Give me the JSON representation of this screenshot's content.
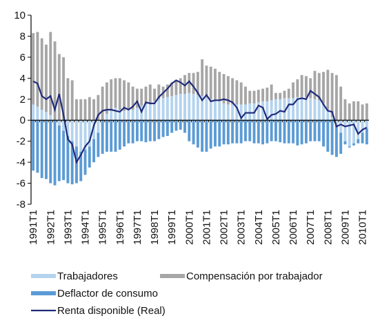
{
  "chart_data": {
    "type": "bar",
    "stacked": true,
    "legend": "bottom",
    "grid": false,
    "categories": [
      "1991T1",
      null,
      null,
      null,
      "1992T1",
      null,
      null,
      null,
      "1993T1",
      null,
      null,
      null,
      "1994T1",
      null,
      null,
      null,
      "1995T1",
      null,
      null,
      null,
      "1996T1",
      null,
      null,
      null,
      "1997T1",
      null,
      null,
      null,
      "1998T1",
      null,
      null,
      null,
      "1999T1",
      null,
      null,
      null,
      "2000T1",
      null,
      null,
      null,
      "2001T1",
      null,
      null,
      null,
      "2002T1",
      null,
      null,
      null,
      "2003T1",
      null,
      null,
      null,
      "2004T1",
      null,
      null,
      null,
      "2005T1",
      null,
      null,
      null,
      "2006T1",
      null,
      null,
      null,
      "2007T1",
      null,
      null,
      null,
      "2008T1",
      null,
      null,
      null,
      "2009T1",
      null,
      null,
      null,
      "2010T1",
      null
    ],
    "ylim": [
      -8,
      10
    ],
    "yticks": [
      -8,
      -6,
      -4,
      -2,
      0,
      2,
      4,
      6,
      8,
      10
    ],
    "series": [
      {
        "name": "Trabajadores",
        "type": "bar",
        "color": "#b4d3ee",
        "values": [
          1.5,
          1.3,
          1.0,
          0.8,
          0.5,
          0.0,
          -0.5,
          -1.0,
          -1.5,
          -2.0,
          -2.5,
          -3.0,
          -2.8,
          -2.5,
          -1.8,
          -1.2,
          0.0,
          0.6,
          1.0,
          1.2,
          1.0,
          0.9,
          1.0,
          1.0,
          1.2,
          1.4,
          1.5,
          1.6,
          1.8,
          2.0,
          2.1,
          2.2,
          2.3,
          2.4,
          2.5,
          2.5,
          2.6,
          2.5,
          2.4,
          2.3,
          2.2,
          2.0,
          1.9,
          1.8,
          1.6,
          1.5,
          1.5,
          1.5,
          1.5,
          1.5,
          1.6,
          1.6,
          1.7,
          1.8,
          1.8,
          1.9,
          2.0,
          2.0,
          2.1,
          2.1,
          2.1,
          2.2,
          2.2,
          2.2,
          2.1,
          2.0,
          1.9,
          1.6,
          1.0,
          0.3,
          -0.5,
          -1.2,
          -2.0,
          -2.5,
          -2.2,
          -1.8,
          -1.2,
          -0.8
        ]
      },
      {
        "name": "Compensación por trabajador",
        "type": "bar",
        "color": "#a6a6a6",
        "values": [
          6.8,
          7.1,
          6.8,
          6.4,
          7.9,
          7.5,
          6.3,
          6.0,
          4.0,
          3.8,
          2.0,
          2.0,
          2.0,
          2.2,
          2.0,
          2.4,
          3.2,
          3.0,
          2.9,
          2.8,
          3.0,
          2.9,
          2.6,
          2.2,
          1.8,
          1.6,
          1.7,
          1.8,
          1.2,
          1.4,
          1.1,
          1.2,
          1.3,
          1.4,
          1.5,
          1.8,
          1.9,
          2.0,
          2.2,
          3.5,
          3.0,
          3.1,
          3.0,
          2.8,
          2.8,
          2.7,
          2.5,
          2.3,
          2.1,
          1.7,
          1.2,
          1.2,
          1.2,
          1.2,
          1.3,
          1.5,
          0.6,
          0.6,
          0.7,
          0.9,
          1.5,
          1.7,
          2.1,
          2.0,
          1.9,
          2.7,
          2.6,
          3.0,
          3.8,
          4.2,
          4.3,
          3.2,
          2.0,
          1.6,
          1.8,
          1.8,
          1.5,
          1.6
        ]
      },
      {
        "name": "Deflactor de consumo",
        "type": "bar",
        "color": "#5b9bd5",
        "values": [
          -4.8,
          -5.0,
          -5.5,
          -5.6,
          -6.0,
          -6.2,
          -5.3,
          -4.7,
          -4.5,
          -4.1,
          -3.5,
          -2.8,
          -2.4,
          -2.0,
          -2.2,
          -2.3,
          -3.2,
          -3.0,
          -3.0,
          -3.0,
          -2.8,
          -2.5,
          -2.2,
          -2.2,
          -2.0,
          -2.0,
          -2.1,
          -2.0,
          -2.0,
          -1.8,
          -1.6,
          -1.5,
          -1.2,
          -1.0,
          -0.9,
          -1.2,
          -2.0,
          -2.3,
          -2.6,
          -3.0,
          -3.0,
          -2.7,
          -2.5,
          -2.5,
          -2.3,
          -2.3,
          -2.2,
          -2.2,
          -2.2,
          -2.0,
          -2.0,
          -2.2,
          -2.2,
          -2.3,
          -2.2,
          -2.0,
          -2.0,
          -2.1,
          -2.2,
          -2.2,
          -2.2,
          -2.4,
          -2.3,
          -2.2,
          -2.0,
          -2.0,
          -2.0,
          -2.5,
          -3.0,
          -3.3,
          -3.0,
          -2.0,
          -0.3,
          -0.1,
          -0.2,
          -0.4,
          -1.0,
          -1.5
        ]
      },
      {
        "name": "Renta disponible (Real)",
        "type": "line",
        "color": "#1f2a7a",
        "values": [
          3.7,
          3.5,
          2.3,
          2.0,
          2.3,
          1.0,
          2.5,
          0.5,
          -1.8,
          -2.3,
          -4.0,
          -3.3,
          -2.5,
          -2.0,
          -0.5,
          0.5,
          0.9,
          1.0,
          1.0,
          0.9,
          0.8,
          1.2,
          1.0,
          1.3,
          1.8,
          0.8,
          1.7,
          1.6,
          1.6,
          2.2,
          2.6,
          3.0,
          3.5,
          3.8,
          3.6,
          3.3,
          3.7,
          3.2,
          2.6,
          1.9,
          2.4,
          1.8,
          1.9,
          1.9,
          2.0,
          1.9,
          1.7,
          1.2,
          0.2,
          0.7,
          0.7,
          0.7,
          1.4,
          1.2,
          0.1,
          0.5,
          0.6,
          0.9,
          0.8,
          1.5,
          1.5,
          2.0,
          2.1,
          2.0,
          2.8,
          2.5,
          2.2,
          1.5,
          0.9,
          0.8,
          -0.6,
          -0.4,
          -0.6,
          -0.5,
          -0.4,
          -1.3,
          -0.9,
          -0.7
        ]
      }
    ]
  }
}
